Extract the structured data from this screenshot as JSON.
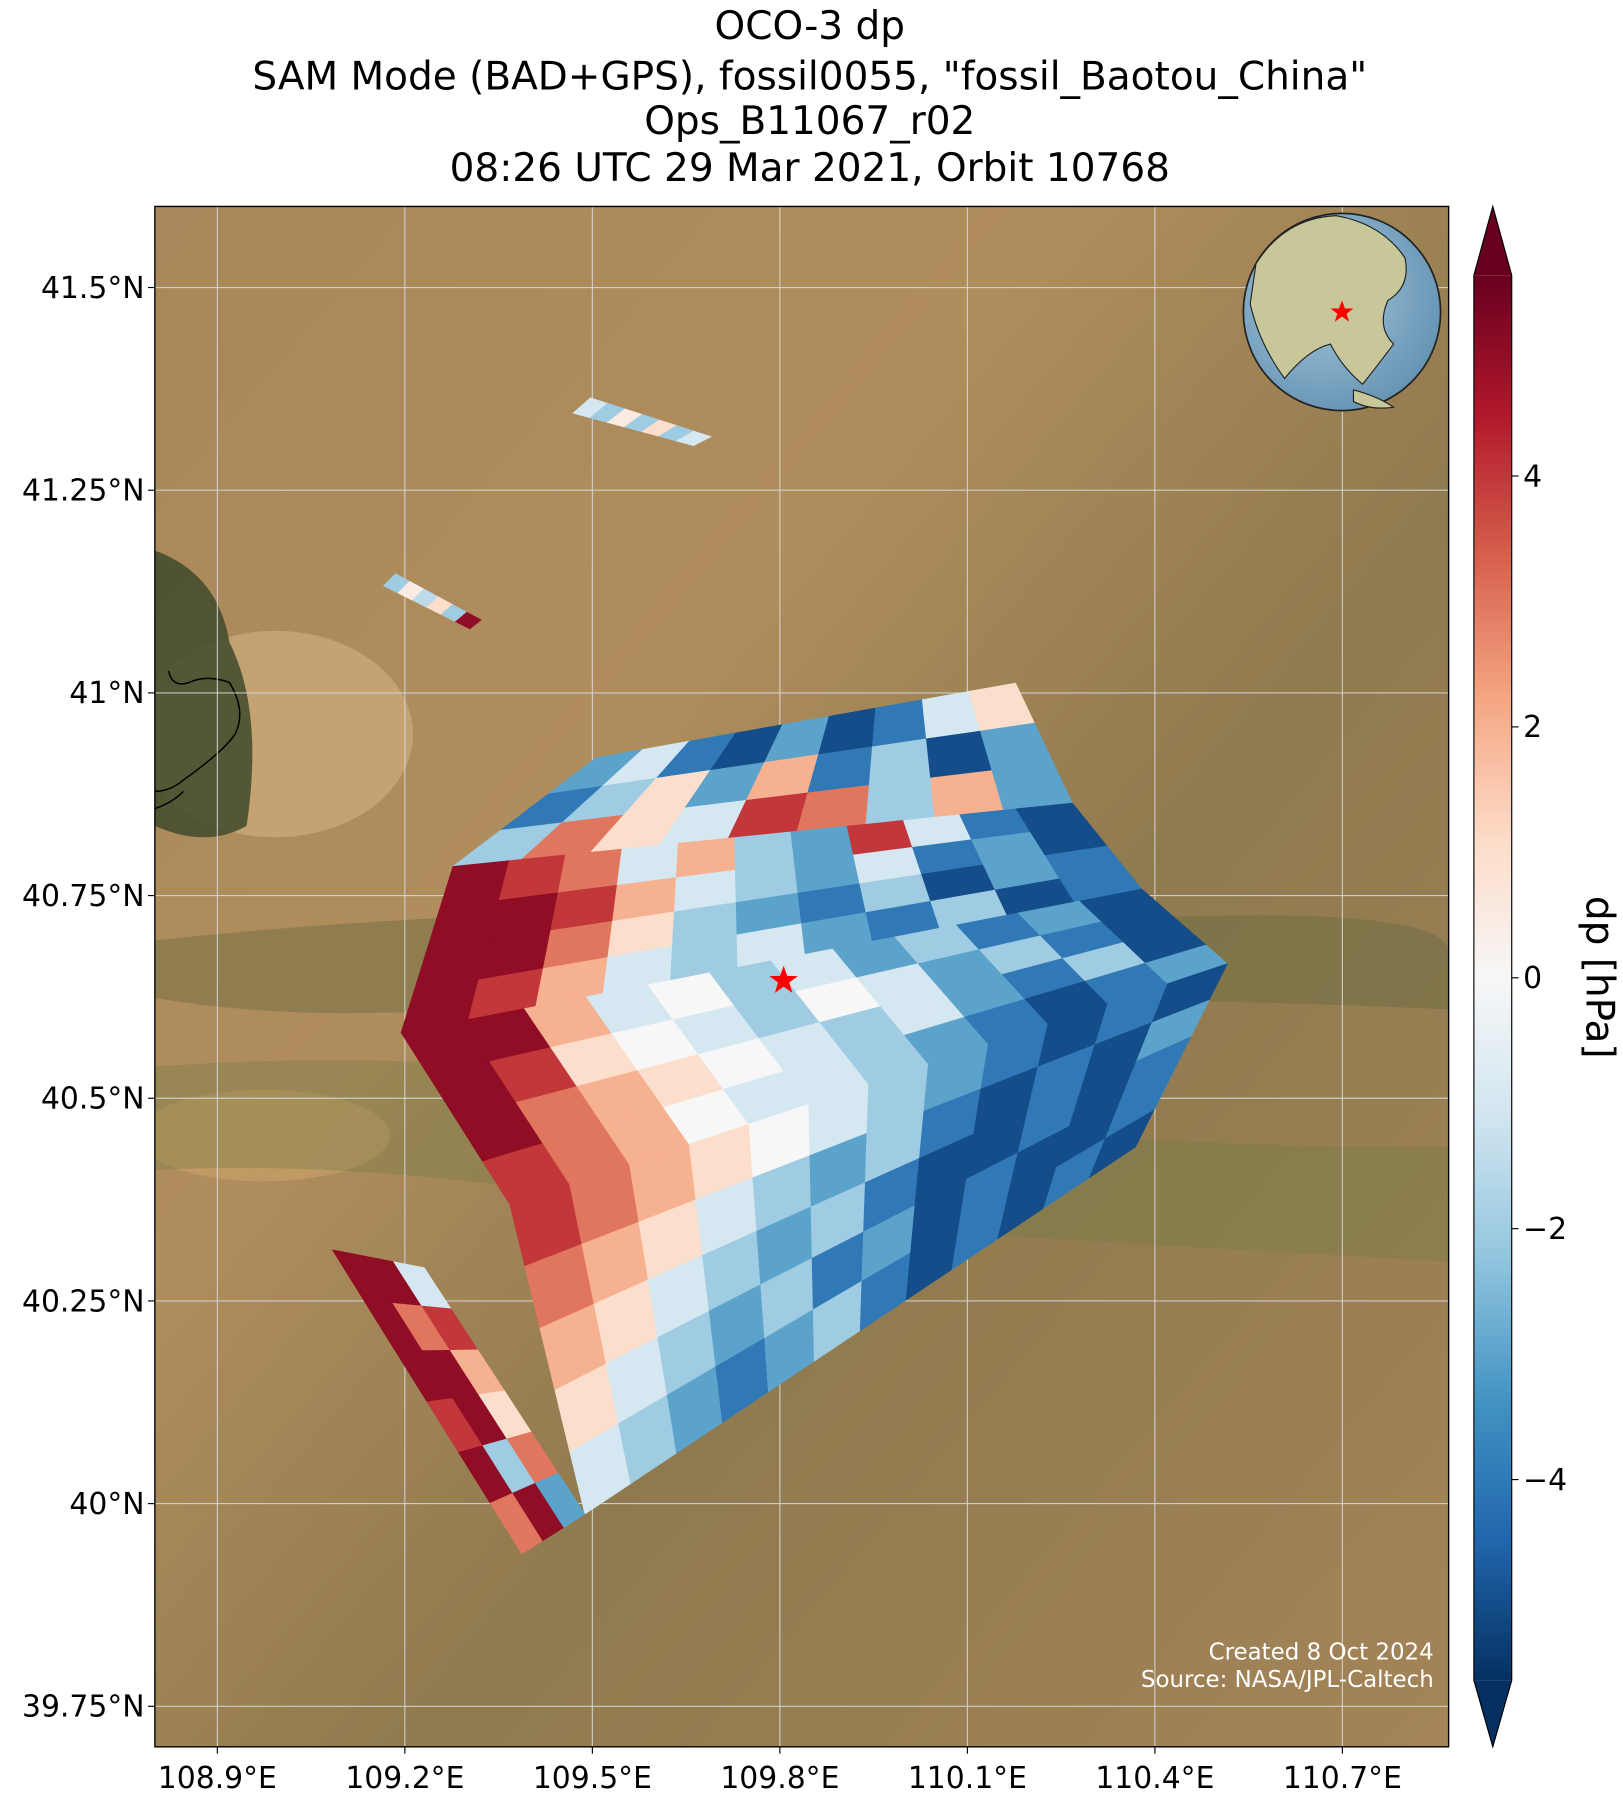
{
  "chart_data": {
    "type": "map",
    "title": "OCO-3 dp",
    "subtitle": [
      "SAM Mode (BAD+GPS), fossil0055, \"fossil_Baotou_China\"",
      "Ops_B11067_r02",
      "08:26 UTC 29 Mar 2021, Orbit 10768"
    ],
    "xlim": [
      108.8,
      110.87
    ],
    "ylim": [
      39.7,
      41.6
    ],
    "xticks": [
      {
        "value": 108.9,
        "label": "108.9°E"
      },
      {
        "value": 109.2,
        "label": "109.2°E"
      },
      {
        "value": 109.5,
        "label": "109.5°E"
      },
      {
        "value": 109.8,
        "label": "109.8°E"
      },
      {
        "value": 110.1,
        "label": "110.1°E"
      },
      {
        "value": 110.4,
        "label": "110.4°E"
      },
      {
        "value": 110.7,
        "label": "110.7°E"
      }
    ],
    "yticks": [
      {
        "value": 39.75,
        "label": "39.75°N"
      },
      {
        "value": 40,
        "label": "40°N"
      },
      {
        "value": 40.25,
        "label": "40.25°N"
      },
      {
        "value": 40.5,
        "label": "40.5°N"
      },
      {
        "value": 40.75,
        "label": "40.75°N"
      },
      {
        "value": 41,
        "label": "41°N"
      },
      {
        "value": 41.25,
        "label": "41.25°N"
      },
      {
        "value": 41.5,
        "label": "41.5°N"
      }
    ],
    "grid": true,
    "colorbar_label": "dp [hPa]",
    "clim": [
      -5.6,
      5.6
    ],
    "cticks": [
      {
        "value": -4,
        "label": "−4"
      },
      {
        "value": -2,
        "label": "−2"
      },
      0,
      2,
      4
    ],
    "cmap": [
      "#053061",
      "#2166ac",
      "#4393c3",
      "#92c5de",
      "#d1e5f0",
      "#f7f7f7",
      "#fddbc7",
      "#f4a582",
      "#d6604d",
      "#b2182b",
      "#67001f"
    ],
    "target": {
      "lon": 109.806,
      "lat": 40.645,
      "color": "#ff0000"
    },
    "swaths": [
      {
        "corners": [
          [
            109.497,
            41.364
          ],
          [
            109.69,
            41.316
          ],
          [
            109.662,
            41.305
          ],
          [
            109.469,
            41.345
          ]
        ],
        "values": [
          [
            -1,
            -2,
            0.5,
            -2,
            1,
            -2,
            -1
          ]
        ]
      },
      {
        "corners": [
          [
            109.185,
            41.147
          ],
          [
            109.322,
            41.09
          ],
          [
            109.304,
            41.079
          ],
          [
            109.166,
            41.132
          ]
        ],
        "values": [
          [
            -2,
            0.5,
            -1.5,
            1,
            -2,
            5
          ]
        ]
      },
      {
        "corners": [
          [
            109.506,
            40.92
          ],
          [
            110.177,
            41.012
          ],
          [
            110.268,
            40.864
          ],
          [
            109.277,
            40.786
          ]
        ],
        "values": [
          [
            -3,
            -1,
            -4,
            -5,
            -3,
            -5,
            -4,
            -1,
            1
          ],
          [
            -4,
            -2,
            1,
            -3,
            2,
            -4,
            -2,
            -5,
            -3
          ],
          [
            -2,
            3,
            1,
            -1,
            4,
            3,
            -2,
            2,
            -3
          ]
        ]
      },
      {
        "corners": [
          [
            109.277,
            40.786
          ],
          [
            110.268,
            40.864
          ],
          [
            110.379,
            40.758
          ],
          [
            109.194,
            40.581
          ]
        ],
        "values": [
          [
            5,
            4,
            3,
            -1,
            2,
            -2,
            -3,
            4,
            -1,
            -4,
            -5
          ],
          [
            5,
            5,
            4,
            2,
            -1,
            -2,
            -3,
            -1,
            -4,
            -3,
            -5
          ],
          [
            5,
            5,
            3,
            1,
            -2,
            -3,
            -4,
            -2,
            -5,
            -3,
            -4
          ],
          [
            5,
            4,
            2,
            -1,
            -2,
            -1,
            -3,
            -4,
            -2,
            -5,
            -4
          ]
        ]
      },
      {
        "corners": [
          [
            109.194,
            40.581
          ],
          [
            110.379,
            40.758
          ],
          [
            110.516,
            40.666
          ],
          [
            109.368,
            40.369
          ]
        ],
        "values": [
          [
            5,
            5,
            2,
            -1,
            0,
            -2,
            -1,
            -3,
            -2,
            -4,
            -3,
            -5
          ],
          [
            5,
            4,
            1,
            0,
            -1,
            -2,
            0,
            -1,
            -3,
            -2,
            -4,
            -5
          ],
          [
            5,
            3,
            2,
            1,
            0,
            -1,
            -2,
            -1,
            -3,
            -4,
            -2,
            -5
          ],
          [
            4,
            3,
            2,
            0,
            -1,
            -1,
            -2,
            -3,
            -4,
            -5,
            -4,
            -3
          ]
        ]
      },
      {
        "corners": [
          [
            109.368,
            40.369
          ],
          [
            110.516,
            40.666
          ],
          [
            110.369,
            40.44
          ],
          [
            109.488,
            39.987
          ]
        ],
        "values": [
          [
            4,
            3,
            2,
            1,
            0,
            -1,
            -2,
            -3,
            -4,
            -5,
            -4,
            -5
          ],
          [
            3,
            2,
            1,
            -1,
            -2,
            -3,
            -2,
            -4,
            -5,
            -4,
            -5,
            -3
          ],
          [
            2,
            1,
            -1,
            -2,
            -3,
            -2,
            -4,
            -5,
            -5,
            -4,
            -5,
            -4
          ],
          [
            1,
            -1,
            -2,
            -3,
            -2,
            -4,
            -3,
            -5,
            -4,
            -5,
            -5,
            -4
          ],
          [
            -1,
            -2,
            -3,
            -4,
            -3,
            -2,
            -4,
            -5,
            -4,
            -5,
            -4,
            -5
          ]
        ]
      },
      {
        "corners": [
          [
            109.084,
            40.313
          ],
          [
            109.231,
            40.291
          ],
          [
            109.488,
            39.987
          ],
          [
            109.387,
            39.938
          ]
        ],
        "values": [
          [
            5,
            5,
            -1
          ],
          [
            5,
            3,
            4
          ],
          [
            5,
            5,
            2
          ],
          [
            4,
            5,
            1
          ],
          [
            5,
            -2,
            3
          ],
          [
            3,
            5,
            -3
          ]
        ]
      }
    ],
    "credits": [
      "Created 8 Oct 2024",
      "Source: NASA/JPL-Caltech"
    ]
  }
}
